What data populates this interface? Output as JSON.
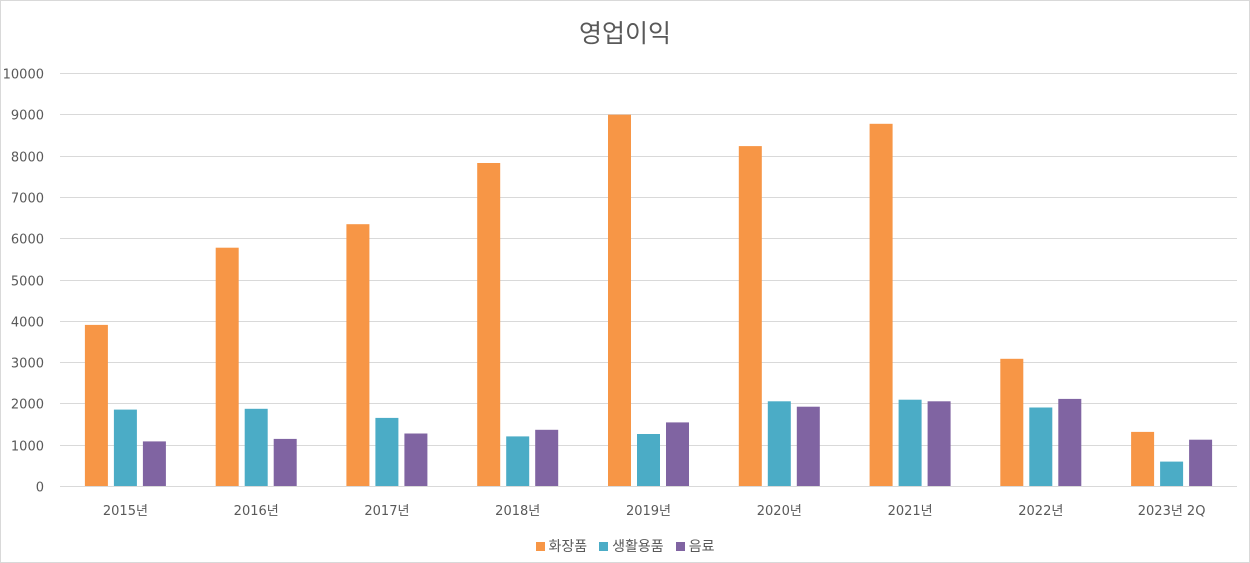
{
  "chart_data": {
    "type": "bar",
    "title": "영업이익",
    "xlabel": "",
    "ylabel": "",
    "ylim": [
      0,
      10000
    ],
    "yticks": [
      0,
      1000,
      2000,
      3000,
      4000,
      5000,
      6000,
      7000,
      8000,
      9000,
      10000
    ],
    "grid": true,
    "legend_position": "bottom",
    "categories": [
      "2015년",
      "2016년",
      "2017년",
      "2018년",
      "2019년",
      "2020년",
      "2021년",
      "2022년",
      "2023년 2Q"
    ],
    "series": [
      {
        "name": "화장품",
        "color": "#F79646",
        "values": [
          3900,
          5770,
          6340,
          7820,
          8990,
          8230,
          8770,
          3080,
          1310
        ]
      },
      {
        "name": "생활용품",
        "color": "#4BACC6",
        "values": [
          1850,
          1870,
          1650,
          1200,
          1260,
          2050,
          2090,
          1900,
          590
        ]
      },
      {
        "name": "음료",
        "color": "#8064A2",
        "values": [
          1080,
          1140,
          1270,
          1360,
          1540,
          1920,
          2050,
          2110,
          1120
        ]
      }
    ]
  }
}
